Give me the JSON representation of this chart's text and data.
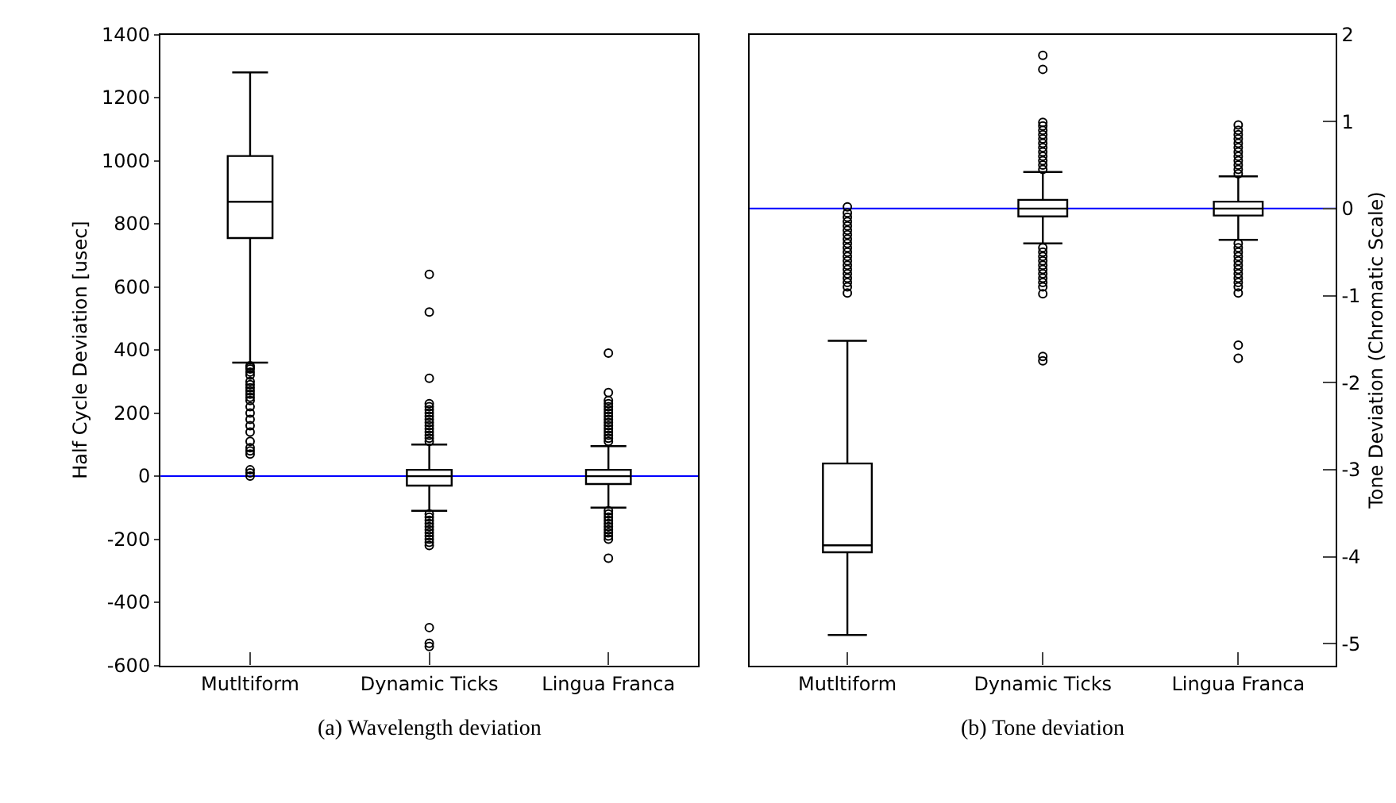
{
  "chart_data": [
    {
      "type": "box",
      "categories": [
        "Mutltiform",
        "Dynamic Ticks",
        "Lingua Franca"
      ],
      "ylabel": "Half Cycle Deviation [usec]",
      "ylim": [
        -600,
        1400
      ],
      "yticks": [
        -600,
        -400,
        -200,
        0,
        200,
        400,
        600,
        800,
        1000,
        1200,
        1400
      ],
      "color": "#000000",
      "marker": "circle",
      "grid": false,
      "boxes": [
        {
          "low": 360,
          "q1": 755,
          "median": 870,
          "q3": 1015,
          "high": 1280,
          "outliers": [
            350,
            345,
            340,
            330,
            320,
            300,
            290,
            280,
            270,
            260,
            250,
            240,
            220,
            200,
            180,
            160,
            140,
            110,
            90,
            80,
            70,
            20,
            10,
            0
          ]
        },
        {
          "low": -110,
          "q1": -30,
          "median": 0,
          "q3": 20,
          "high": 100,
          "outliers": [
            640,
            520,
            310,
            230,
            220,
            210,
            200,
            190,
            180,
            170,
            160,
            150,
            140,
            130,
            120,
            110,
            -120,
            -130,
            -140,
            -150,
            -160,
            -170,
            -180,
            -190,
            -200,
            -210,
            -220,
            -480,
            -530,
            -540
          ]
        },
        {
          "low": -100,
          "q1": -25,
          "median": 0,
          "q3": 20,
          "high": 95,
          "outliers": [
            390,
            265,
            240,
            230,
            220,
            210,
            200,
            190,
            180,
            170,
            160,
            150,
            140,
            130,
            120,
            110,
            -110,
            -120,
            -130,
            -140,
            -150,
            -160,
            -170,
            -180,
            -190,
            -200,
            -260
          ]
        }
      ],
      "ref_lines": [
        {
          "axis": "y",
          "value": 0,
          "color": "#0000ff"
        }
      ],
      "annotations": [
        "(a) Wavelength deviation"
      ]
    },
    {
      "type": "box",
      "categories": [
        "Mutltiform",
        "Dynamic Ticks",
        "Lingua Franca"
      ],
      "ylabel": "Tone Deviation (Chromatic Scale)",
      "ylim": [
        -5.25,
        2
      ],
      "yticks": [
        -5,
        -4,
        -3,
        -2,
        -1,
        0,
        1,
        2
      ],
      "color": "#000000",
      "marker": "circle",
      "grid": false,
      "boxes": [
        {
          "low": -4.9,
          "q1": -3.95,
          "median": -3.87,
          "q3": -2.93,
          "high": -1.52,
          "outliers": [
            0.02,
            -0.05,
            -0.1,
            -0.15,
            -0.2,
            -0.25,
            -0.3,
            -0.35,
            -0.4,
            -0.45,
            -0.5,
            -0.55,
            -0.6,
            -0.65,
            -0.7,
            -0.75,
            -0.8,
            -0.85,
            -0.9,
            -0.97
          ]
        },
        {
          "low": -0.4,
          "q1": -0.09,
          "median": 0,
          "q3": 0.1,
          "high": 0.42,
          "outliers": [
            1.76,
            1.6,
            0.99,
            0.95,
            0.9,
            0.85,
            0.8,
            0.75,
            0.7,
            0.65,
            0.6,
            0.55,
            0.5,
            0.45,
            -0.45,
            -0.5,
            -0.55,
            -0.6,
            -0.65,
            -0.7,
            -0.75,
            -0.8,
            -0.85,
            -0.9,
            -0.98,
            -1.7,
            -1.75
          ]
        },
        {
          "low": -0.36,
          "q1": -0.08,
          "median": 0,
          "q3": 0.08,
          "high": 0.37,
          "outliers": [
            0.96,
            0.9,
            0.85,
            0.8,
            0.75,
            0.7,
            0.65,
            0.6,
            0.55,
            0.5,
            0.45,
            0.4,
            -0.4,
            -0.45,
            -0.5,
            -0.55,
            -0.6,
            -0.65,
            -0.7,
            -0.75,
            -0.8,
            -0.85,
            -0.9,
            -0.97,
            -1.57,
            -1.72
          ]
        }
      ],
      "ref_lines": [
        {
          "axis": "y",
          "value": 0,
          "color": "#0000ff"
        }
      ],
      "annotations": [
        "(b) Tone deviation"
      ]
    }
  ]
}
